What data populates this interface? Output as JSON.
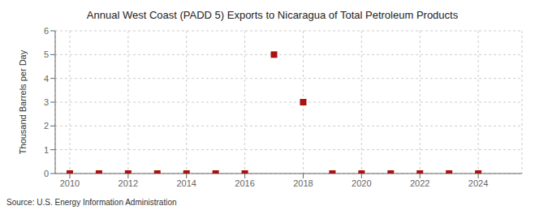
{
  "chart_data": {
    "type": "scatter",
    "title": "Annual West Coast (PADD 5) Exports to Nicaragua of Total Petroleum Products",
    "ylabel": "Thousand Barrels per Day",
    "annotations": [
      "Source: U.S. Energy Information Administration"
    ],
    "x": [
      2010,
      2011,
      2012,
      2013,
      2014,
      2015,
      2016,
      2017,
      2018,
      2019,
      2020,
      2021,
      2022,
      2023,
      2024
    ],
    "values": [
      0,
      0,
      0,
      0,
      0,
      0,
      0,
      5,
      3,
      0,
      0,
      0,
      0,
      0,
      0
    ],
    "color": "#aa1111",
    "marker": "square",
    "xlim": [
      2009.5,
      2025.5
    ],
    "ylim": [
      0,
      6
    ],
    "xticks": [
      2010,
      2012,
      2014,
      2016,
      2018,
      2020,
      2022,
      2024
    ],
    "yticks": [
      0,
      1,
      2,
      3,
      4,
      5,
      6
    ],
    "grid": true
  }
}
